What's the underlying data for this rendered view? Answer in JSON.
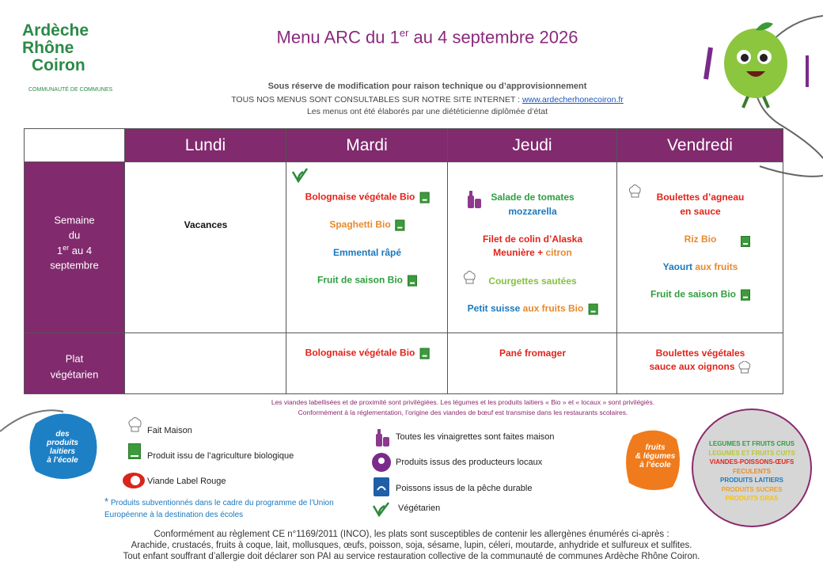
{
  "logo": {
    "line1": "Ardèche",
    "line2": "Rhône",
    "line3": "Coiron",
    "tagline": "COMMUNAUTÉ DE COMMUNES"
  },
  "header": {
    "title_start": "Menu ARC du 1",
    "title_sup": "er",
    "title_end": " au 4 septembre 2026",
    "notice": "Sous réserve de modification pour raison technique ou d’approvisionnement",
    "site_text": "TOUS NOS MENUS SONT CONSULTABLES SUR NOTRE SITE INTERNET : ",
    "site_link": "www.ardecherhonecoiron.fr",
    "dietitian": "Les menus ont été élaborés par une diététicienne diplômée d’état"
  },
  "table": {
    "days": [
      "Lundi",
      "Mardi",
      "Jeudi",
      "Vendredi"
    ],
    "rows": [
      {
        "label": [
          "Semaine",
          "du",
          "1",
          "er",
          " au 4",
          "septembre"
        ],
        "cells": [
          [
            [
              "Vacances"
            ]
          ],
          [
            [
              "Bolognaise végétale Bio"
            ],
            [
              "Spaghetti Bio"
            ],
            [
              "Emmental râpé"
            ],
            [
              "Fruit de saison Bio"
            ]
          ],
          [
            [
              "Salade de tomates"
            ],
            [
              "mozzarella"
            ],
            [
              "Filet de colin d’Alaska"
            ],
            [
              "Meunière + ",
              "citron"
            ],
            [
              "Courgettes sautées"
            ],
            [
              "Petit suisse ",
              "aux fruits Bio"
            ]
          ],
          [
            [
              "Boulettes d’agneau"
            ],
            [
              "en sauce"
            ],
            [
              "Riz Bio"
            ],
            [
              "Yaourt ",
              "aux fruits"
            ],
            [
              "Fruit de saison Bio"
            ]
          ]
        ]
      },
      {
        "label": [
          "Plat",
          "végétarien"
        ],
        "cells": [
          [],
          [
            [
              "Bolognaise végétale Bio"
            ]
          ],
          [
            [
              "Pané fromager"
            ]
          ],
          [
            [
              "Boulettes végétales"
            ],
            [
              "sauce aux oignons"
            ]
          ]
        ]
      }
    ]
  },
  "footnotes": [
    "Les viandes labellisées et de proximité sont privilégiées. Les légumes et les produits laitiers « Bio » et « locaux » sont privilégiés.",
    "Conformément à la réglementation, l’origine des viandes de bœuf est transmise dans les restaurants scolaires."
  ],
  "legend": {
    "left": [
      "Fait Maison",
      "Produit issu de l’agriculture biologique",
      "Viande Label Rouge"
    ],
    "star": "*",
    "eu_note": [
      " Produits subventionnés dans le cadre du programme de l’Union",
      "Européenne à la destination des écoles"
    ],
    "middle": [
      "Toutes les vinaigrettes sont faites maison",
      "Produits issus des producteurs locaux",
      "Poissons  issus de la pêche durable",
      "Végétarien"
    ],
    "groups": [
      "LEGUMES ET FRUITS CRUS",
      "LEGUMES ET FRUITS CUITS",
      "VIANDES-POISSONS-ŒUFS",
      "FECULENTS",
      "PRODUITS LAITIERS",
      "PRODUITS SUCRES",
      "PRODUITS GRAS"
    ]
  },
  "badges": {
    "dairy": [
      "des",
      "produits",
      "laitiers",
      "à l’école"
    ],
    "fruit": [
      "fruits",
      "& légumes",
      "à l’école"
    ]
  },
  "allergens": [
    "Conformément au règlement CE n°1169/2011 (INCO), les plats sont susceptibles de contenir les allergènes énumérés ci-après :",
    "Arachide, crustacés, fruits à coque, lait, mollusques, œufs, poisson, soja, sésame, lupin, céleri, moutarde, anhydride et sulfureux et sulfites.",
    "Tout enfant souffrant d’allergie doit déclarer son PAI au service restauration collective de la communauté de communes Ardèche Rhône Coiron."
  ]
}
